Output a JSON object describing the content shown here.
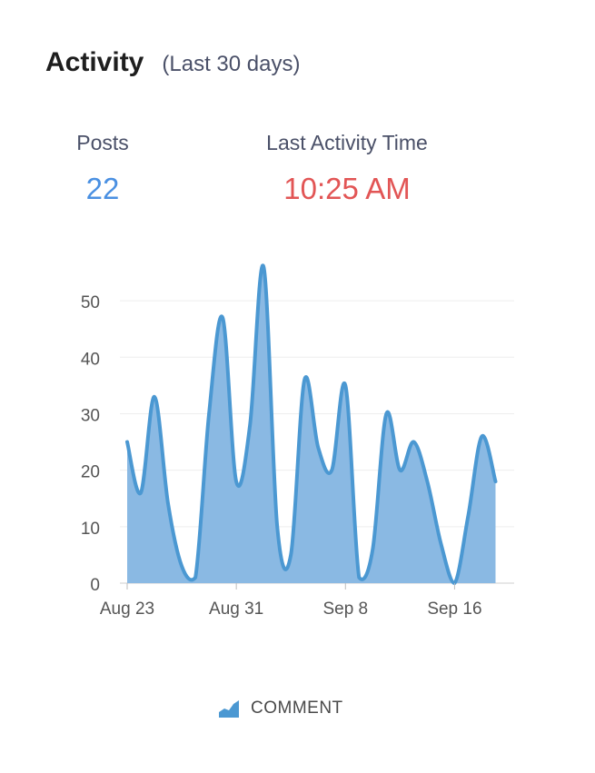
{
  "header": {
    "title": "Activity",
    "subtitle": "(Last 30 days)"
  },
  "stats": {
    "posts_label": "Posts",
    "posts_value": "22",
    "last_label": "Last Activity Time",
    "last_value": "10:25 AM"
  },
  "colors": {
    "posts_value": "#4a90e2",
    "last_value": "#e25555",
    "series_line": "#4b98d2",
    "series_fill": "#8ab9e3"
  },
  "chart_data": {
    "type": "area",
    "title": "",
    "xlabel": "",
    "ylabel": "",
    "ylim": [
      0,
      55
    ],
    "yticks": [
      0,
      10,
      20,
      30,
      40,
      50
    ],
    "xticks": [
      "Aug 23",
      "Aug 31",
      "Sep 8",
      "Sep 16"
    ],
    "grid": true,
    "legend_position": "bottom",
    "x": [
      "Aug 23",
      "Aug 24",
      "Aug 25",
      "Aug 26",
      "Aug 27",
      "Aug 28",
      "Aug 29",
      "Aug 30",
      "Aug 31",
      "Sep 1",
      "Sep 2",
      "Sep 3",
      "Sep 4",
      "Sep 5",
      "Sep 6",
      "Sep 7",
      "Sep 8",
      "Sep 9",
      "Sep 10",
      "Sep 11",
      "Sep 12",
      "Sep 13",
      "Sep 14",
      "Sep 15",
      "Sep 16",
      "Sep 17",
      "Sep 18",
      "Sep 19"
    ],
    "series": [
      {
        "name": "COMMENT",
        "values": [
          25,
          16,
          33,
          14,
          3,
          1,
          30,
          47,
          18,
          28,
          56,
          10,
          5,
          36,
          24,
          20,
          35,
          1,
          6,
          30,
          20,
          25,
          18,
          7,
          0,
          12,
          26,
          18
        ]
      }
    ]
  }
}
